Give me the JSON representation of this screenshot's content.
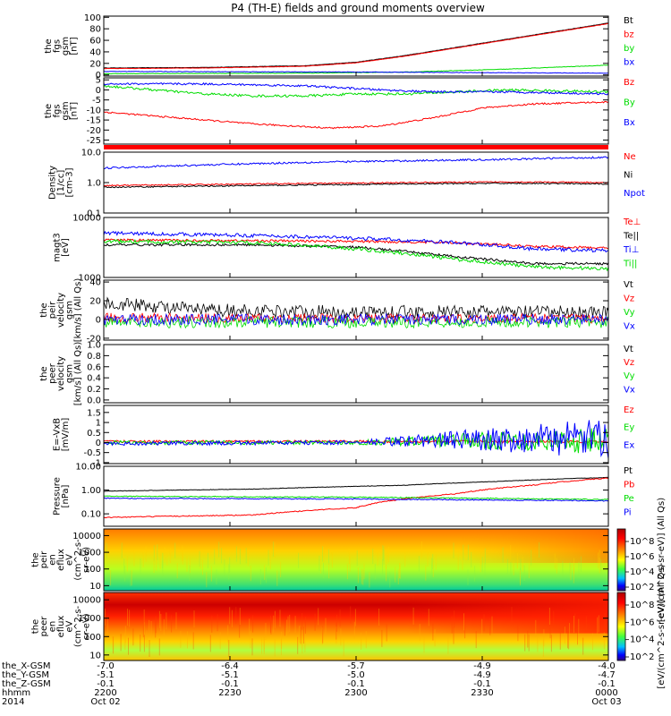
{
  "title": "P4 (TH-E) fields and ground moments overview",
  "chart_data": [
    {
      "id": "fgs_gsm",
      "type": "line",
      "ylabel": [
        "the",
        "fgs",
        "gsm",
        "[nT]"
      ],
      "ylim": [
        -2,
        102
      ],
      "yticks": [
        0,
        20,
        40,
        60,
        80,
        100
      ],
      "ytick_labels": [
        "0",
        "20",
        "40",
        "60",
        "80",
        "100"
      ],
      "series": [
        {
          "name": "Bt",
          "color": "#000000",
          "x": [
            0,
            0.2,
            0.4,
            0.5,
            0.6,
            0.7,
            0.8,
            0.9,
            1.0
          ],
          "y": [
            12,
            13,
            16,
            22,
            34,
            48,
            62,
            76,
            90
          ],
          "noise": 0.3
        },
        {
          "name": "bz",
          "color": "#ff0000",
          "x": [
            0,
            0.2,
            0.4,
            0.5,
            0.6,
            0.7,
            0.8,
            0.9,
            1.0
          ],
          "y": [
            11,
            12,
            15,
            21,
            33,
            47,
            61,
            75,
            89
          ],
          "noise": 0.3
        },
        {
          "name": "by",
          "color": "#00dd00",
          "x": [
            0,
            0.4,
            0.6,
            0.8,
            1.0
          ],
          "y": [
            2,
            3,
            5,
            10,
            17
          ],
          "noise": 0.4
        },
        {
          "name": "bx",
          "color": "#0000ff",
          "x": [
            0,
            0.5,
            1.0
          ],
          "y": [
            6,
            5,
            3
          ],
          "noise": 0.4
        }
      ]
    },
    {
      "id": "fgs_gse",
      "type": "line",
      "ylabel": [
        "the",
        "fgs",
        "gsm",
        "[nT]"
      ],
      "ylim": [
        -27,
        6
      ],
      "yticks": [
        5,
        0,
        -5,
        -10,
        -15,
        -20,
        -25
      ],
      "ytick_labels": [
        "5",
        "0",
        "-5",
        "-10",
        "-15",
        "-20",
        "-25"
      ],
      "series": [
        {
          "name": "Bz",
          "color": "#ff0000",
          "x": [
            0,
            0.15,
            0.3,
            0.45,
            0.55,
            0.65,
            0.75,
            0.85,
            1.0
          ],
          "y": [
            -11,
            -14,
            -17,
            -19,
            -18,
            -14,
            -9,
            -7,
            -6
          ],
          "noise": 0.4
        },
        {
          "name": "By",
          "color": "#00dd00",
          "x": [
            0,
            0.1,
            0.2,
            0.3,
            0.4,
            0.5,
            0.6,
            0.7,
            0.8,
            1.0
          ],
          "y": [
            2,
            0,
            -2,
            -3,
            -3,
            -2,
            -2,
            -1,
            0,
            -1
          ],
          "noise": 0.6
        },
        {
          "name": "Bx",
          "color": "#0000ff",
          "x": [
            0,
            0.2,
            0.4,
            0.55,
            0.65,
            0.8,
            1.0
          ],
          "y": [
            3,
            3,
            2,
            0,
            -1,
            -1,
            -2
          ],
          "noise": 0.5
        }
      ]
    },
    {
      "id": "density",
      "type": "line",
      "log": true,
      "ylabel": [
        "Density",
        "[1/cc]",
        "[cm-3]"
      ],
      "ylim": [
        0.1,
        10
      ],
      "yticks": [
        0.1,
        1.0,
        10.0
      ],
      "ytick_labels": [
        "0.1",
        "1.0",
        "10.0"
      ],
      "series": [
        {
          "name": "Ne",
          "color": "#ff0000",
          "x": [
            0,
            0.3,
            0.6,
            0.8,
            1.0
          ],
          "y": [
            0.8,
            0.9,
            1.0,
            1.05,
            1.0
          ],
          "noise": 0.02
        },
        {
          "name": "Ni",
          "color": "#000000",
          "x": [
            0,
            0.3,
            0.6,
            0.8,
            1.0
          ],
          "y": [
            0.7,
            0.8,
            0.9,
            0.95,
            0.9
          ],
          "noise": 0.02
        },
        {
          "name": "Npot",
          "color": "#0000ff",
          "x": [
            0,
            0.2,
            0.4,
            0.6,
            0.8,
            1.0
          ],
          "y": [
            3.0,
            3.8,
            4.6,
            5.2,
            5.8,
            6.8
          ],
          "noise": 0.03
        }
      ]
    },
    {
      "id": "temperature",
      "type": "line",
      "log": true,
      "ylabel": [
        "magt3",
        "[eV]"
      ],
      "ylim": [
        1000,
        10000
      ],
      "yticks": [
        1000,
        10000
      ],
      "ytick_labels": [
        "1000",
        "10000"
      ],
      "series": [
        {
          "name": "Te⊥",
          "color": "#ff0000",
          "x": [
            0,
            0.3,
            0.5,
            0.7,
            0.85,
            1.0
          ],
          "y": [
            4200,
            4100,
            4000,
            3800,
            3300,
            3100
          ],
          "noise": 0.02
        },
        {
          "name": "Te||",
          "color": "#000000",
          "x": [
            0,
            0.3,
            0.5,
            0.7,
            0.85,
            1.0
          ],
          "y": [
            3500,
            3500,
            3200,
            2200,
            1700,
            1700
          ],
          "noise": 0.02
        },
        {
          "name": "Ti⊥",
          "color": "#0000ff",
          "x": [
            0,
            0.3,
            0.5,
            0.7,
            0.85,
            1.0
          ],
          "y": [
            5500,
            5000,
            4500,
            3800,
            3000,
            2800
          ],
          "noise": 0.03
        },
        {
          "name": "Ti||",
          "color": "#00dd00",
          "x": [
            0,
            0.3,
            0.5,
            0.7,
            0.85,
            1.0
          ],
          "y": [
            4000,
            3800,
            3000,
            2000,
            1500,
            1400
          ],
          "noise": 0.03
        }
      ]
    },
    {
      "id": "peir_velocity",
      "type": "line",
      "ylabel": [
        "the",
        "peir",
        "velocity",
        "gsm",
        "[km/s] (All Qs)"
      ],
      "ylim": [
        -22,
        42
      ],
      "yticks": [
        40,
        20,
        0,
        -20
      ],
      "ytick_labels": [
        "40",
        "20",
        "0",
        "-20"
      ],
      "series": [
        {
          "name": "Vt",
          "color": "#000000",
          "x": [
            0,
            0.2,
            0.5,
            1.0
          ],
          "y": [
            18,
            10,
            8,
            8
          ],
          "noise": 7
        },
        {
          "name": "Vz",
          "color": "#ff0000",
          "x": [
            0,
            0.5,
            1.0
          ],
          "y": [
            2,
            1,
            1
          ],
          "noise": 5
        },
        {
          "name": "Vy",
          "color": "#00dd00",
          "x": [
            0,
            0.5,
            1.0
          ],
          "y": [
            -3,
            -3,
            -3
          ],
          "noise": 6
        },
        {
          "name": "Vx",
          "color": "#0000ff",
          "x": [
            0,
            0.5,
            1.0
          ],
          "y": [
            0,
            0,
            0
          ],
          "noise": 6
        }
      ]
    },
    {
      "id": "peer_velocity",
      "type": "line",
      "ylabel": [
        "the",
        "peer",
        "velocity",
        "gsm",
        "[km/s] (All Qs)"
      ],
      "ylim": [
        -0.05,
        1.0
      ],
      "yticks": [
        0.0,
        0.2,
        0.4,
        0.6,
        0.8,
        1.0
      ],
      "ytick_labels": [
        "0.0",
        "0.2",
        "0.4",
        "0.6",
        "0.8",
        "1.0"
      ],
      "series": [
        {
          "name": "Vt",
          "color": "#000000",
          "x": [],
          "y": []
        },
        {
          "name": "Vz",
          "color": "#ff0000",
          "x": [],
          "y": []
        },
        {
          "name": "Vy",
          "color": "#00dd00",
          "x": [],
          "y": []
        },
        {
          "name": "Vx",
          "color": "#0000ff",
          "x": [],
          "y": []
        }
      ]
    },
    {
      "id": "efield",
      "type": "line",
      "ylabel": [
        "E=-VxB",
        "[mV/m]"
      ],
      "ylim": [
        -1.05,
        1.85
      ],
      "yticks": [
        1.5,
        1,
        0.5,
        0,
        -0.5,
        -1
      ],
      "ytick_labels": [
        "1.5",
        "1",
        "0.5",
        "0",
        "-0.5",
        "-1"
      ],
      "series": [
        {
          "name": "Ez",
          "color": "#ff0000",
          "x": [
            0,
            0.5,
            1.0
          ],
          "y": [
            0.05,
            0.05,
            0.05
          ],
          "noise": 0.06
        },
        {
          "name": "Ey",
          "color": "#00dd00",
          "x": [
            0,
            0.5,
            0.7,
            1.0
          ],
          "y": [
            0,
            0,
            0.1,
            0.1
          ],
          "noise": 0.1,
          "noise_grow": 0.6
        },
        {
          "name": "Ex",
          "color": "#0000ff",
          "x": [
            0,
            0.5,
            0.7,
            1.0
          ],
          "y": [
            -0.05,
            0,
            0.15,
            0.2
          ],
          "noise": 0.1,
          "noise_grow": 0.9
        }
      ]
    },
    {
      "id": "pressure",
      "type": "line",
      "log": true,
      "ylabel": [
        "Pressure",
        "[nPa]"
      ],
      "ylim": [
        0.03,
        10
      ],
      "yticks": [
        0.1,
        1.0,
        10.0
      ],
      "ytick_labels": [
        "0.10",
        "1.00",
        "10.00"
      ],
      "series": [
        {
          "name": "Pt",
          "color": "#000000",
          "x": [
            0,
            0.3,
            0.6,
            0.8,
            1.0
          ],
          "y": [
            0.9,
            1.1,
            1.6,
            2.4,
            3.4
          ],
          "noise": 0.01
        },
        {
          "name": "Pb",
          "color": "#ff0000",
          "x": [
            0,
            0.3,
            0.5,
            0.7,
            0.85,
            1.0
          ],
          "y": [
            0.07,
            0.09,
            0.18,
            0.7,
            1.6,
            3.2
          ],
          "noise": 0.02
        },
        {
          "name": "Pe",
          "color": "#00dd00",
          "x": [
            0,
            0.5,
            1.0
          ],
          "y": [
            0.55,
            0.5,
            0.4
          ],
          "noise": 0.02
        },
        {
          "name": "Pi",
          "color": "#0000ff",
          "x": [
            0,
            0.5,
            1.0
          ],
          "y": [
            0.45,
            0.42,
            0.35
          ],
          "noise": 0.02
        }
      ]
    },
    {
      "id": "peir_eflux",
      "type": "heatmap",
      "ylabel": [
        "the",
        "peir",
        "en",
        "eflux",
        "eV",
        "(cm^2-s-",
        "sr-eV)"
      ],
      "log": true,
      "ylim": [
        5,
        25000
      ],
      "yticks": [
        10,
        100,
        1000,
        10000
      ],
      "ytick_labels": [
        "10",
        "100",
        "1000",
        "10000"
      ],
      "colorbar_label": "[eV/(cm^2-s-sr-eV)] (All Qs)",
      "colorbar_ticks": [
        "10^8",
        "10^6",
        "10^4",
        "10^2"
      ]
    },
    {
      "id": "peer_eflux",
      "type": "heatmap",
      "ylabel": [
        "the",
        "peer",
        "en",
        "eflux",
        "eV",
        "(cm^2-s-",
        "sr-eV)"
      ],
      "log": true,
      "ylim": [
        5,
        25000
      ],
      "yticks": [
        10,
        100,
        1000,
        10000
      ],
      "ytick_labels": [
        "10",
        "100",
        "1000",
        "10000"
      ],
      "colorbar_label": "[eV/(cm^2-s-sr-eV)] (All Qs)",
      "colorbar_ticks": [
        "10^8",
        "10^6",
        "10^4",
        "10^2"
      ]
    }
  ],
  "xaxis": {
    "rows": [
      {
        "label": "the_X-GSM",
        "values": [
          "-7.0",
          "-6.4",
          "-5.7",
          "-4.9",
          "-4.0"
        ]
      },
      {
        "label": "the_Y-GSM",
        "values": [
          "-5.1",
          "-5.1",
          "-5.0",
          "-4.9",
          "-4.7"
        ]
      },
      {
        "label": "the_Z-GSM",
        "values": [
          "-0.1",
          "-0.1",
          "-0.1",
          "-0.1",
          "-0.1"
        ]
      },
      {
        "label": "hhmm",
        "values": [
          "2200",
          "2230",
          "2300",
          "2330",
          "0000"
        ]
      },
      {
        "label": "2014",
        "values": [
          "Oct 02",
          "",
          "",
          "",
          "Oct 03"
        ]
      }
    ],
    "tick_fracs": [
      0,
      0.25,
      0.5,
      0.75,
      1.0
    ]
  },
  "colors": {
    "flag_bar": "#ff0000"
  }
}
